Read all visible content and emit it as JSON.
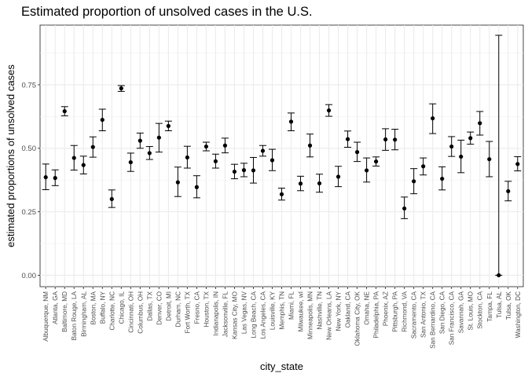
{
  "chart_data": {
    "type": "scatter",
    "title": "Estimated proportion of unsolved cases in the U.S.",
    "xlabel": "city_state",
    "ylabel": "estimated proportions of unsolved cases",
    "ylim": [
      -0.045,
      0.985
    ],
    "yticks": [
      0.0,
      0.25,
      0.5,
      0.75
    ],
    "ytick_labels": [
      "0.00",
      "0.25",
      "0.50",
      "0.75"
    ],
    "grid": true,
    "categories": [
      "Albuquerque, NM",
      "Atlanta, GA",
      "Baltimore, MD",
      "Baton Rouge, LA",
      "Birmingham, AL",
      "Boston, MA",
      "Buffalo, NY",
      "Charlotte, NC",
      "Chicago, IL",
      "Cincinnati, OH",
      "Columbus, OH",
      "Dallas, TX",
      "Denver, CO",
      "Detroit, MI",
      "Durham, NC",
      "Fort Worth, TX",
      "Fresno, CA",
      "Houston, TX",
      "Indianapolis, IN",
      "Jacksonville, FL",
      "Kansas City, MO",
      "Las Vegas, NV",
      "Long Beach, CA",
      "Los Angeles, CA",
      "Louisville, KY",
      "Memphis, TN",
      "Miami, FL",
      "Milwaukee, wI",
      "Minneapolis, MN",
      "Nashville, TN",
      "New Orleans, LA",
      "New York, NY",
      "Oakland, CA",
      "Oklahoma City, OK",
      "Omaha, NE",
      "Philadelphia, PA",
      "Phoenix, AZ",
      "Pittsburgh, PA",
      "Richmond, VA",
      "Sacramento, CA",
      "San Antonio, TX",
      "San Bernardino, CA",
      "San Diego, CA",
      "San Francisco, CA",
      "Savannah, GA",
      "St. Louis, MO",
      "Stockton, CA",
      "Tampa, FL",
      "Tulsa, AL",
      "Tulsa, OK",
      "Washington, DC"
    ],
    "series": [
      {
        "estimate": [
          0.386,
          0.383,
          0.646,
          0.462,
          0.434,
          0.505,
          0.612,
          0.3,
          0.736,
          0.445,
          0.53,
          0.481,
          0.542,
          0.588,
          0.366,
          0.464,
          0.347,
          0.507,
          0.449,
          0.511,
          0.408,
          0.414,
          0.413,
          0.49,
          0.453,
          0.319,
          0.605,
          0.361,
          0.511,
          0.362,
          0.649,
          0.388,
          0.536,
          0.485,
          0.413,
          0.448,
          0.535,
          0.534,
          0.263,
          0.37,
          0.429,
          0.618,
          0.38,
          0.507,
          0.467,
          0.54,
          0.599,
          0.457,
          0.0,
          0.331,
          0.438
        ],
        "conf_low": [
          0.337,
          0.353,
          0.628,
          0.414,
          0.399,
          0.465,
          0.569,
          0.267,
          0.724,
          0.409,
          0.5,
          0.456,
          0.485,
          0.569,
          0.31,
          0.422,
          0.305,
          0.49,
          0.422,
          0.482,
          0.38,
          0.388,
          0.363,
          0.469,
          0.412,
          0.296,
          0.569,
          0.333,
          0.466,
          0.327,
          0.626,
          0.349,
          0.504,
          0.448,
          0.367,
          0.43,
          0.492,
          0.494,
          0.223,
          0.321,
          0.395,
          0.558,
          0.336,
          0.468,
          0.404,
          0.516,
          0.552,
          0.388,
          0.0,
          0.293,
          0.411
        ],
        "conf_high": [
          0.438,
          0.415,
          0.664,
          0.511,
          0.469,
          0.545,
          0.654,
          0.336,
          0.747,
          0.481,
          0.56,
          0.507,
          0.598,
          0.607,
          0.426,
          0.508,
          0.392,
          0.524,
          0.477,
          0.54,
          0.437,
          0.441,
          0.464,
          0.511,
          0.496,
          0.343,
          0.639,
          0.39,
          0.556,
          0.398,
          0.672,
          0.429,
          0.568,
          0.524,
          0.462,
          0.466,
          0.577,
          0.575,
          0.308,
          0.42,
          0.462,
          0.675,
          0.427,
          0.546,
          0.532,
          0.564,
          0.645,
          0.527,
          0.945,
          0.37,
          0.467
        ]
      }
    ]
  }
}
